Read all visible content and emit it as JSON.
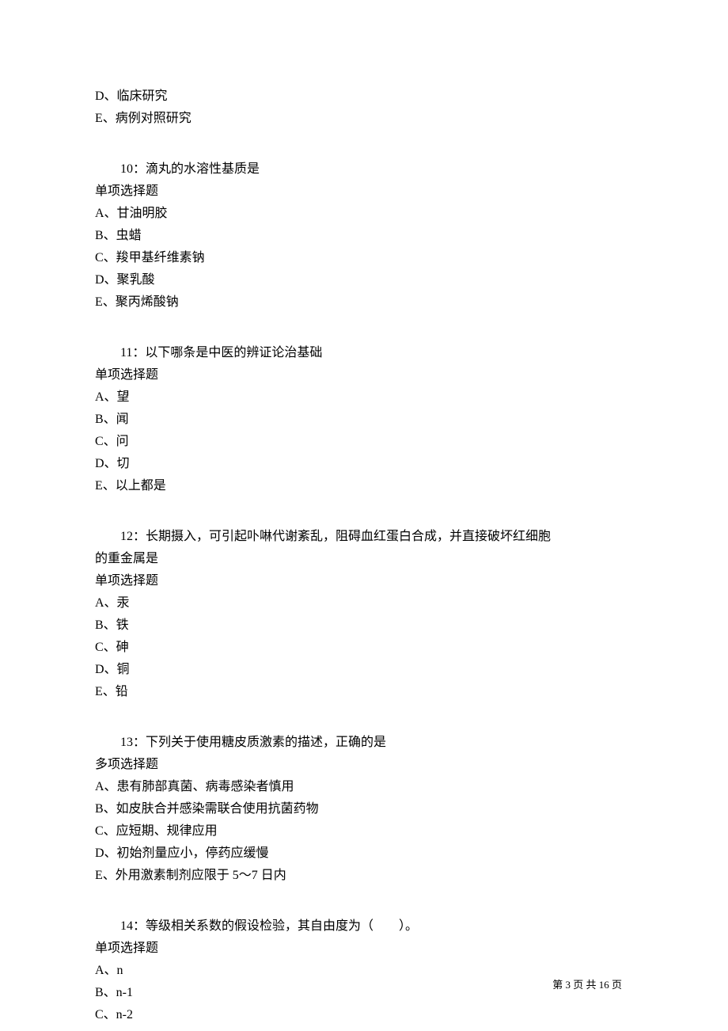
{
  "q9_tail": {
    "options": [
      "D、临床研究",
      "E、病例对照研究"
    ]
  },
  "q10": {
    "stem": "10：滴丸的水溶性基质是",
    "type": "单项选择题",
    "options": [
      "A、甘油明胶",
      "B、虫蜡",
      "C、羧甲基纤维素钠",
      "D、聚乳酸",
      "E、聚丙烯酸钠"
    ]
  },
  "q11": {
    "stem": "11：以下哪条是中医的辨证论治基础",
    "type": "单项选择题",
    "options": [
      "A、望",
      "B、闻",
      "C、问",
      "D、切",
      "E、以上都是"
    ]
  },
  "q12": {
    "stem_line1": "12：长期摄入，可引起卟啉代谢紊乱，阻碍血红蛋白合成，并直接破坏红细胞",
    "stem_line2": "的重金属是",
    "type": "单项选择题",
    "options": [
      "A、汞",
      "B、铁",
      "C、砷",
      "D、铜",
      "E、铅"
    ]
  },
  "q13": {
    "stem": "13：下列关于使用糖皮质激素的描述，正确的是",
    "type": "多项选择题",
    "options": [
      "A、患有肺部真菌、病毒感染者慎用",
      "B、如皮肤合并感染需联合使用抗菌药物",
      "C、应短期、规律应用",
      "D、初始剂量应小，停药应缓慢",
      "E、外用激素制剂应限于 5～7 日内"
    ]
  },
  "q14": {
    "stem": "14：等级相关系数的假设检验，其自由度为（　　）。",
    "type": "单项选择题",
    "options": [
      "A、n",
      "B、n-1",
      "C、n-2"
    ]
  },
  "footer": {
    "text": "第 3 页 共 16 页"
  }
}
